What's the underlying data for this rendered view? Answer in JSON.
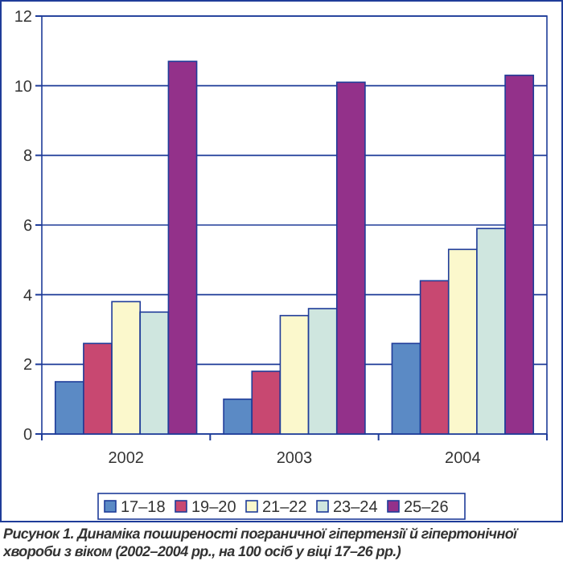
{
  "chart_data": {
    "type": "bar",
    "categories": [
      "2002",
      "2003",
      "2004"
    ],
    "series": [
      {
        "name": "17–18",
        "color": "#5b8ac5",
        "values": [
          1.5,
          1.0,
          2.6
        ]
      },
      {
        "name": "19–20",
        "color": "#c84871",
        "values": [
          2.6,
          1.8,
          4.4
        ]
      },
      {
        "name": "21–22",
        "color": "#fbf8cc",
        "values": [
          3.8,
          3.4,
          5.3
        ]
      },
      {
        "name": "23–24",
        "color": "#cfe6df",
        "values": [
          3.5,
          3.6,
          5.9
        ]
      },
      {
        "name": "25–26",
        "color": "#93318a",
        "values": [
          10.7,
          10.1,
          10.3
        ]
      }
    ],
    "ylim": [
      0,
      12
    ],
    "yticks": [
      0,
      2,
      4,
      6,
      8,
      10,
      12
    ],
    "grid": "y",
    "legend": "bottom",
    "annotations": [
      "Рисунок 1. Динаміка поширеності пограничної гіпертензії й гіпертонічної хвороби з віком (2002–2004 рр., на 100 осіб у віці 17–26 рр.)"
    ]
  }
}
